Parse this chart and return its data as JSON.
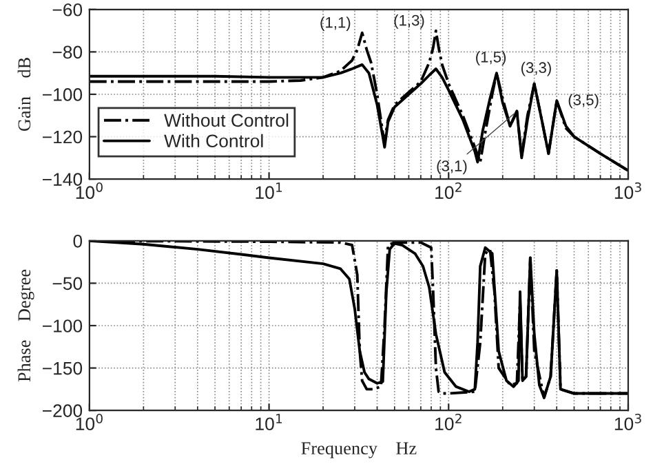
{
  "chart_data": [
    {
      "type": "line",
      "ylabel": "Gain    dB",
      "log": "x",
      "xlim": [
        1,
        1000
      ],
      "xticks": [
        {
          "value": 1,
          "label": "10$^{0}$"
        },
        {
          "value": 10,
          "label": "10$^{1}$"
        },
        {
          "value": 100,
          "label": "10$^{2}$"
        },
        {
          "value": 1000,
          "label": "10$^{3}$"
        }
      ],
      "ylim": [
        -140,
        -60
      ],
      "yticks": [
        -140,
        -120,
        -100,
        -80,
        -60
      ],
      "grid": true,
      "legend": "bottom left",
      "annotations": [
        {
          "text": "(1,1)",
          "x": 33,
          "y": -71
        },
        {
          "text": "(1,3)",
          "x": 85,
          "y": -70
        },
        {
          "text": "(1,5)",
          "x": 185,
          "y": -90
        },
        {
          "text": "(3,1)",
          "x": 240,
          "y": -108
        },
        {
          "text": "(3,3)",
          "x": 300,
          "y": -95
        },
        {
          "text": "(3,5)",
          "x": 400,
          "y": -103
        }
      ],
      "series": [
        {
          "name": "Without Control",
          "color": "#000000",
          "line_style": "dashdot",
          "x": [
            1,
            5,
            10,
            15,
            20,
            25,
            29,
            31,
            33,
            35,
            37,
            40,
            43,
            44,
            46,
            50,
            60,
            70,
            78,
            82,
            85,
            88,
            92,
            100,
            120,
            140,
            150,
            160,
            175,
            185,
            200,
            220,
            240,
            255,
            275,
            300,
            330,
            360,
            400,
            450,
            500,
            700,
            1000
          ],
          "values": [
            -94,
            -94,
            -94,
            -93.5,
            -92,
            -89,
            -84,
            -79,
            -71,
            -79,
            -85,
            -100,
            -118,
            -122,
            -112,
            -105,
            -99,
            -94,
            -85,
            -78,
            -70,
            -78,
            -86,
            -95,
            -110,
            -125,
            -132,
            -118,
            -100,
            -90,
            -102,
            -115,
            -108,
            -129,
            -110,
            -95,
            -112,
            -128,
            -103,
            -116,
            -120,
            -128,
            -136
          ]
        },
        {
          "name": "With Control",
          "color": "#000000",
          "line_style": "solid",
          "x": [
            1,
            5,
            10,
            15,
            20,
            25,
            29,
            33,
            36,
            40,
            43,
            44,
            46,
            50,
            60,
            70,
            78,
            85,
            92,
            100,
            120,
            140,
            145,
            155,
            170,
            185,
            200,
            220,
            240,
            255,
            275,
            300,
            330,
            360,
            400,
            450,
            500,
            700,
            1000
          ],
          "values": [
            -91.5,
            -91.5,
            -92,
            -92,
            -92,
            -90,
            -88,
            -86,
            -90,
            -105,
            -120,
            -125,
            -113,
            -106,
            -100,
            -95,
            -91,
            -88,
            -92,
            -98,
            -112,
            -127,
            -132,
            -117,
            -102,
            -90,
            -104,
            -115,
            -108,
            -130,
            -112,
            -95,
            -112,
            -128,
            -103,
            -115,
            -120,
            -128,
            -136
          ]
        }
      ]
    },
    {
      "type": "line",
      "xlabel": "Frequency    Hz",
      "ylabel": "Phase    Degree",
      "log": "x",
      "xlim": [
        1,
        1000
      ],
      "xticks": [
        {
          "value": 1,
          "label": "10$^{0}$"
        },
        {
          "value": 10,
          "label": "10$^{1}$"
        },
        {
          "value": 100,
          "label": "10$^{2}$"
        },
        {
          "value": 1000,
          "label": "10$^{3}$"
        }
      ],
      "ylim": [
        -200,
        0
      ],
      "yticks": [
        -200,
        -150,
        -100,
        -50,
        0
      ],
      "grid": true,
      "series": [
        {
          "color": "#000000",
          "line_style": "dashdot",
          "x": [
            1,
            10,
            25,
            29,
            31,
            32,
            33,
            35,
            38,
            42,
            44,
            46,
            50,
            70,
            80,
            82,
            85,
            88,
            92,
            100,
            140,
            150,
            160,
            170,
            180,
            190,
            220,
            240,
            245,
            250,
            258,
            270,
            285,
            300,
            340,
            370,
            400,
            420,
            500,
            1000
          ],
          "values": [
            0,
            -1,
            -2,
            -5,
            -40,
            -130,
            -165,
            -175,
            -175,
            -172,
            -100,
            -5,
            -2,
            -2,
            -8,
            -60,
            -150,
            -178,
            -180,
            -180,
            -178,
            -120,
            -15,
            -10,
            -60,
            -150,
            -170,
            -168,
            -120,
            -70,
            -165,
            -160,
            -20,
            -130,
            -185,
            -160,
            -35,
            -175,
            -180,
            -180
          ]
        },
        {
          "color": "#000000",
          "line_style": "solid",
          "x": [
            1,
            2,
            4,
            7,
            10,
            20,
            25,
            28,
            30,
            32,
            34,
            36,
            40,
            43,
            45,
            47,
            50,
            55,
            65,
            72,
            78,
            85,
            95,
            110,
            130,
            140,
            145,
            150,
            160,
            175,
            190,
            210,
            230,
            245,
            250,
            258,
            270,
            285,
            300,
            320,
            340,
            370,
            400,
            420,
            500,
            1000
          ],
          "values": [
            0,
            -4,
            -10,
            -16,
            -20,
            -27,
            -33,
            -45,
            -80,
            -130,
            -155,
            -163,
            -168,
            -166,
            -60,
            -10,
            -3,
            -5,
            -15,
            -30,
            -55,
            -110,
            -155,
            -172,
            -178,
            -175,
            -120,
            -30,
            -8,
            -15,
            -130,
            -165,
            -172,
            -165,
            -60,
            -165,
            -160,
            -20,
            -110,
            -170,
            -185,
            -160,
            -35,
            -175,
            -180,
            -180
          ]
        }
      ]
    }
  ]
}
